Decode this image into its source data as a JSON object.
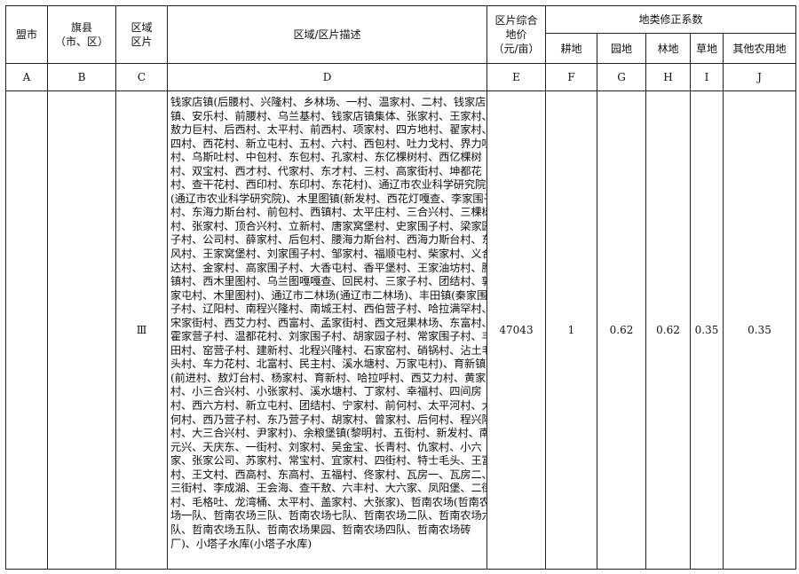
{
  "headers": {
    "city": "盟市",
    "county": "旗县（市、区）",
    "county_line1": "旗县",
    "county_line2": "（市、区）",
    "zone_line1": "区域",
    "zone_line2": "区片",
    "description": "区域/区片描述",
    "price_line1": "区片综合",
    "price_line2": "地价",
    "price_line3": "（元/亩）",
    "coef_group": "地类修正系数",
    "coef_cols": [
      "耕地",
      "园地",
      "林地",
      "草地",
      "其他农用地"
    ]
  },
  "letters": [
    "A",
    "B",
    "C",
    "D",
    "E",
    "F",
    "G",
    "H",
    "I",
    "J"
  ],
  "row": {
    "city": "",
    "county": "",
    "zone": "Ⅲ",
    "price": "47043",
    "coefs": [
      "1",
      "0.62",
      "0.62",
      "0.35",
      "0.35"
    ],
    "description_lines": [
      "钱家店镇(后腰村、兴隆村、乡林场、一村、温家村、二村、钱家店",
      "镇、安乐村、前腰村、乌兰基村、钱家店镇集体、张家村、王家村、",
      "敖力巨村、后西村、太平村、前西村、项家村、四方地村、翟家村、",
      "四村、西花村、新立屯村、五村、六村、西包村、吐力戈村、界力吐",
      "村、乌斯吐村、中包村、东包村、孔家村、东亿棵树村、西亿棵树",
      "村、双宝村、西才村、代家村、东才村、三村、高家街村、坤都花",
      "村、查干花村、西印村、东印村、东花村)、通辽市农业科学研究院",
      "(通辽市农业科学研究院)、木里图镇(新发村、西花灯嘎查、李家围子",
      "村、东海力斯台村、前包村、西镇村、太平庄村、三合兴村、三棵树",
      "村、张家村、顶合兴村、立新村、唐家窝堡村、史家围子村、梁家园",
      "子村、公司村、薛家村、后包村、腰海力斯台村、西海力斯台村、东",
      "风村、王家窝堡村、刘家围子村、邹家村、福顺屯村、柴家村、义合",
      "达村、金家村、高家围子村、大香屯村、香平堡村、王家油坊村、腰",
      "镇村、西木里图村、乌兰图嘎嘎查、回民村、三家子村、团结村、郭",
      "家屯村、木里图村)、通辽市二林场(通辽市二林场)、丰田镇(秦家围",
      "子村、辽阳村、南程兴隆村、南城王村、西伯营子村、哈拉满罕村、",
      "宋家街村、西艾力村、西富村、孟家街村、西文冠果林场、东富村、",
      "霍家营子村、温都花村、刘家围子村、胡家园子村、常家围子村、丰",
      "田村、窑营子村、建新村、北程兴隆村、石家窑村、硝锅村、沾土毛",
      "头村、车力花村、北富村、民主村、溪水塘村、万家屯村)、育新镇",
      "(前进村、敖灯台村、杨家村、育新村、哈拉呼村、西艾力村、黄家",
      "村、小三合兴村、小张家村、溪水塘村、丁家村、幸福村、四间房",
      "村、西六方村、新立屯村、团结村、宁家村、前何村、太平河村、大",
      "何村、西乃营子村、东乃营子村、胡家村、曾家村、后何村、程兴隆",
      "村、大三合兴村、尹家村)、余粮堡镇(黎明村、五街村、新发村、南",
      "元兴、天庆东、一街村、刘家村、吴金宝、长青村、仇家村、小六",
      "家、张家公司、苏家村、常宝村、宜家村、四街村、特士毛头、王富",
      "村、王文村、西高村、东高村、五福村、佟家村、瓦房一、瓦房二、",
      "三街村、李成湖、王会海、查干敖、六丰村、大六家、凤阳堡、二街",
      "村、毛格吐、龙湾桶、太平村、盖家村、大张家)、哲南农场(哲南农",
      "场一队、哲南农场三队、哲南农场七队、哲南农场二队、哲南农场六",
      "队、哲南农场五队、哲南农场果园、哲南农场四队、哲南农场砖",
      "厂)、小塔子水库(小塔子水库)"
    ]
  }
}
